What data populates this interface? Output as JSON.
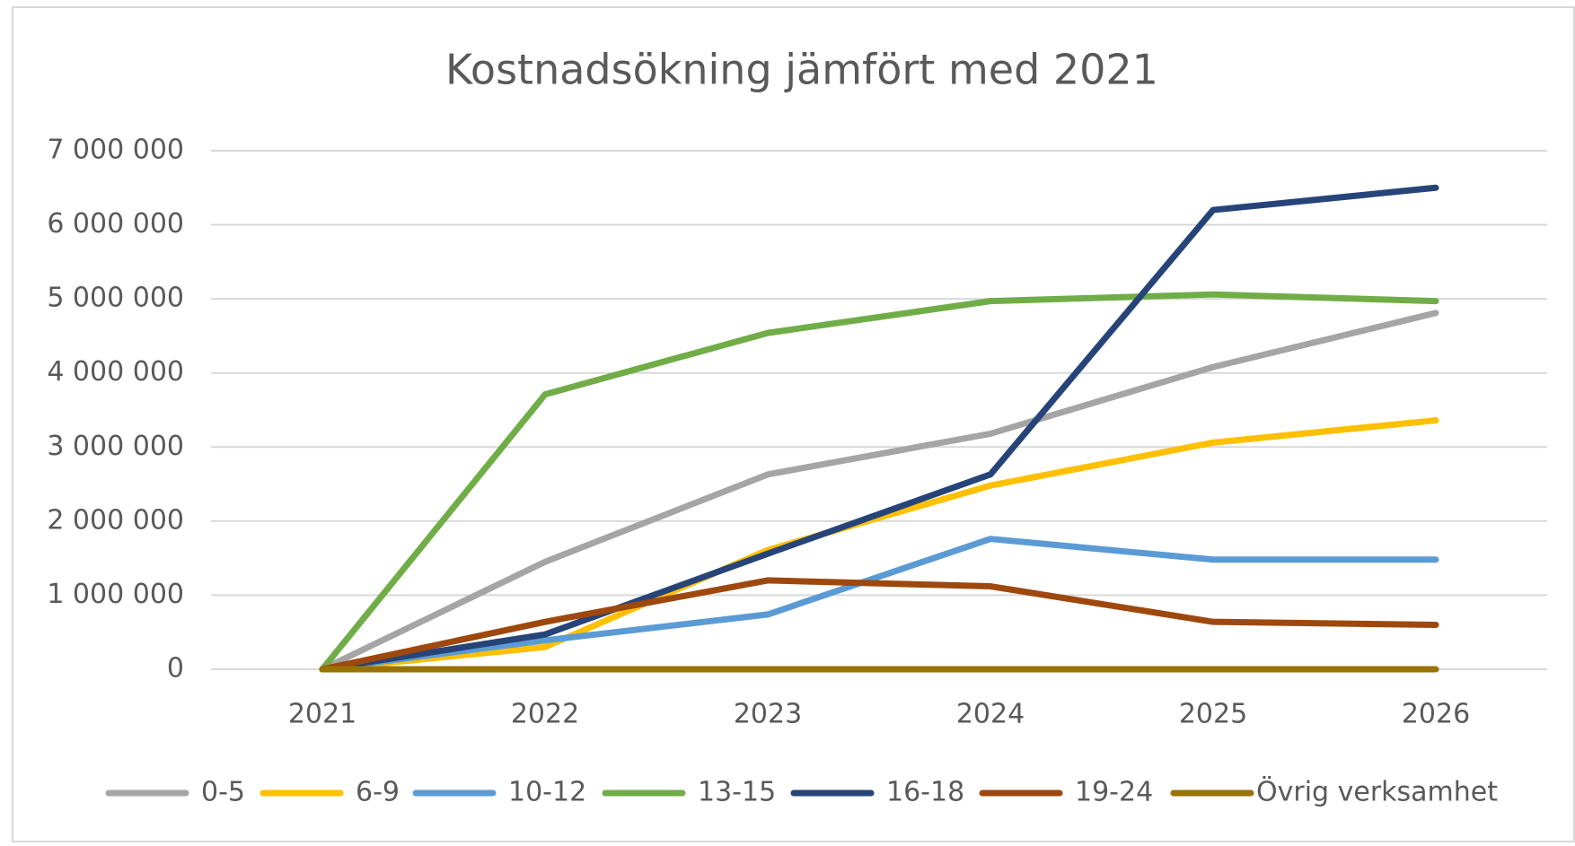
{
  "chart_data": {
    "type": "line",
    "title": "Kostnadsökning jämfört med 2021",
    "categories": [
      "2021",
      "2022",
      "2023",
      "2024",
      "2025",
      "2026"
    ],
    "series": [
      {
        "name": "0-5",
        "color": "#a5a5a5",
        "values": [
          0,
          1450000,
          2630000,
          3180000,
          4080000,
          4810000
        ]
      },
      {
        "name": "6-9",
        "color": "#ffc000",
        "values": [
          0,
          300000,
          1610000,
          2480000,
          3060000,
          3360000
        ]
      },
      {
        "name": "10-12",
        "color": "#5b9bd5",
        "values": [
          0,
          390000,
          740000,
          1760000,
          1480000,
          1480000
        ]
      },
      {
        "name": "13-15",
        "color": "#70ad47",
        "values": [
          0,
          3710000,
          4540000,
          4970000,
          5060000,
          4970000
        ]
      },
      {
        "name": "16-18",
        "color": "#264478",
        "values": [
          0,
          470000,
          1560000,
          2630000,
          6200000,
          6500000
        ]
      },
      {
        "name": "19-24",
        "color": "#9e480e",
        "values": [
          0,
          640000,
          1200000,
          1120000,
          640000,
          600000
        ]
      },
      {
        "name": "Övrig verksamhet",
        "color": "#997300",
        "values": [
          0,
          0,
          0,
          0,
          0,
          0
        ]
      }
    ],
    "ylim": [
      0,
      7000000
    ],
    "yticks": [
      0,
      {
        "value": 1000000,
        "label": "1 000 000"
      },
      {
        "value": 2000000,
        "label": "2 000 000"
      },
      {
        "value": 3000000,
        "label": "3 000 000"
      },
      {
        "value": 4000000,
        "label": "4 000 000"
      },
      {
        "value": 5000000,
        "label": "5 000 000"
      },
      {
        "value": 6000000,
        "label": "6 000 000"
      },
      {
        "value": 7000000,
        "label": "7 000 000"
      }
    ],
    "grid": true,
    "legend": "bottom"
  }
}
